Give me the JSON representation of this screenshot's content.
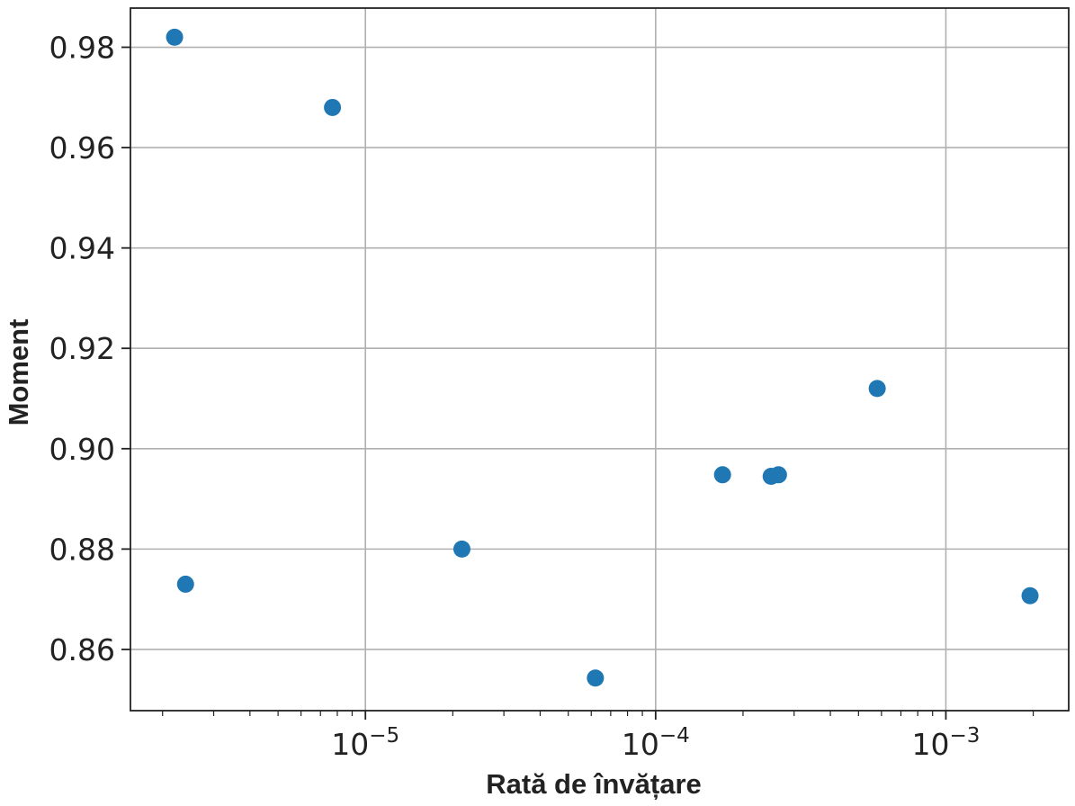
{
  "chart_data": {
    "type": "scatter",
    "xlabel": "Rată de învățare",
    "ylabel": "Moment",
    "xscale": "log",
    "xlim": [
      1.55e-06,
      0.00265
    ],
    "ylim": [
      0.8478,
      0.9878
    ],
    "grid": true,
    "marker_color": "#1f77b4",
    "x_ticks": [
      {
        "value": 1e-05,
        "base": "10",
        "exp": "−5"
      },
      {
        "value": 0.0001,
        "base": "10",
        "exp": "−4"
      },
      {
        "value": 0.001,
        "base": "10",
        "exp": "−3"
      }
    ],
    "y_ticks": [
      {
        "value": 0.86,
        "label": "0.86"
      },
      {
        "value": 0.88,
        "label": "0.88"
      },
      {
        "value": 0.9,
        "label": "0.90"
      },
      {
        "value": 0.92,
        "label": "0.92"
      },
      {
        "value": 0.94,
        "label": "0.94"
      },
      {
        "value": 0.96,
        "label": "0.96"
      },
      {
        "value": 0.98,
        "label": "0.98"
      }
    ],
    "points": [
      {
        "x": 2.2e-06,
        "y": 0.982
      },
      {
        "x": 2.4e-06,
        "y": 0.873
      },
      {
        "x": 7.7e-06,
        "y": 0.968
      },
      {
        "x": 2.15e-05,
        "y": 0.88
      },
      {
        "x": 6.2e-05,
        "y": 0.8543
      },
      {
        "x": 0.00017,
        "y": 0.8948
      },
      {
        "x": 0.00025,
        "y": 0.8945
      },
      {
        "x": 0.000265,
        "y": 0.8948
      },
      {
        "x": 0.00058,
        "y": 0.912
      },
      {
        "x": 0.00195,
        "y": 0.8707
      }
    ]
  }
}
